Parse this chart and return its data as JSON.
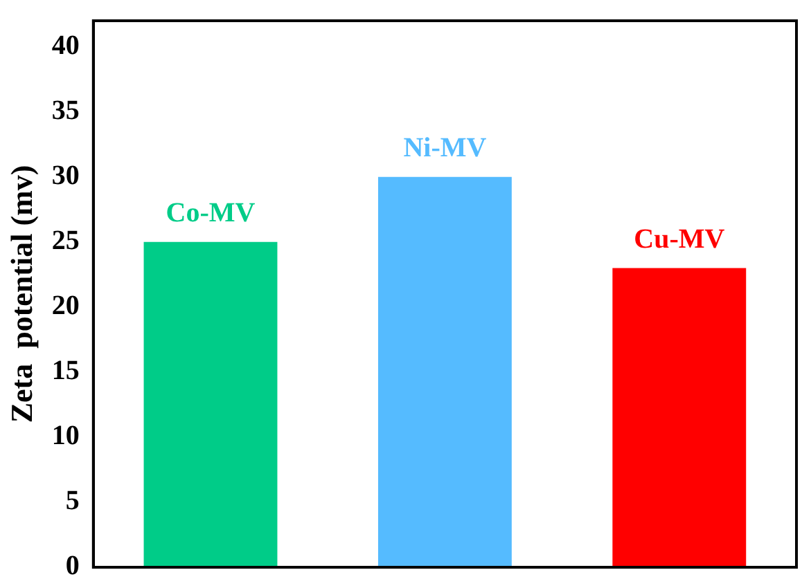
{
  "chart_data": {
    "type": "bar",
    "ylabel": "Zeta  potential (mv)",
    "categories": [
      "Co-MV",
      "Ni-MV",
      "Cu-MV"
    ],
    "values": [
      25,
      30,
      23
    ],
    "colors": [
      "#00cc88",
      "#55bbff",
      "#ff0000"
    ],
    "ylim": [
      0,
      42
    ],
    "yticks": [
      0,
      5,
      10,
      15,
      20,
      25,
      30,
      35,
      40
    ],
    "grid": false,
    "legend": false,
    "tick_labels": "y"
  }
}
